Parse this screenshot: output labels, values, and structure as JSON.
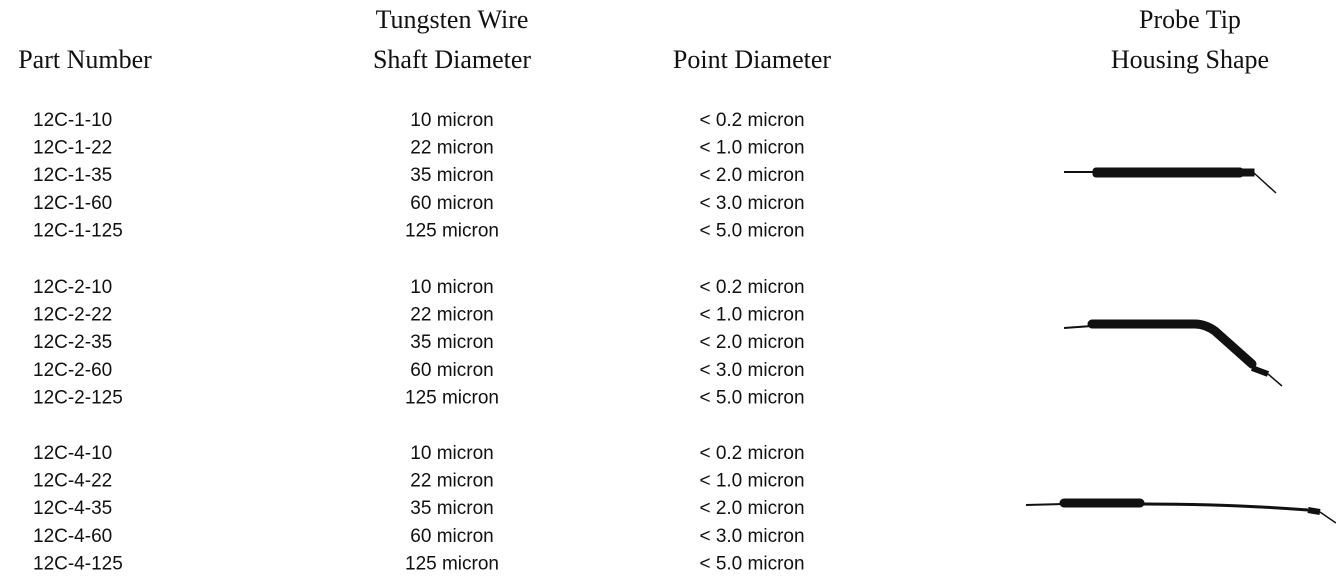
{
  "headers": [
    {
      "lines": [
        "Part Number"
      ]
    },
    {
      "lines": [
        "Tungsten Wire",
        "Shaft Diameter"
      ]
    },
    {
      "lines": [
        "Point Diameter"
      ]
    },
    {
      "lines": [
        "Probe Tip",
        "Housing Shape"
      ]
    }
  ],
  "groups": [
    {
      "rows": [
        [
          "12C-1-10",
          "10 micron",
          "< 0.2 micron"
        ],
        [
          "12C-1-22",
          "22 micron",
          "< 1.0 micron"
        ],
        [
          "12C-1-35",
          "35 micron",
          "< 2.0 micron"
        ],
        [
          "12C-1-60",
          "60 micron",
          "< 3.0 micron"
        ],
        [
          "12C-1-125",
          "125 micron",
          "< 5.0 micron"
        ]
      ]
    },
    {
      "rows": [
        [
          "12C-2-10",
          "10 micron",
          "< 0.2 micron"
        ],
        [
          "12C-2-22",
          "22 micron",
          "< 1.0 micron"
        ],
        [
          "12C-2-35",
          "35 micron",
          "< 2.0 micron"
        ],
        [
          "12C-2-60",
          "60 micron",
          "< 3.0 micron"
        ],
        [
          "12C-2-125",
          "125 micron",
          "< 5.0 micron"
        ]
      ]
    },
    {
      "rows": [
        [
          "12C-4-10",
          "10 micron",
          "< 0.2 micron"
        ],
        [
          "12C-4-22",
          "22 micron",
          "< 1.0 micron"
        ],
        [
          "12C-4-35",
          "35 micron",
          "< 2.0 micron"
        ],
        [
          "12C-4-60",
          "60 micron",
          "< 3.0 micron"
        ],
        [
          "12C-4-125",
          "125 micron",
          "< 5.0 micron"
        ]
      ]
    }
  ]
}
